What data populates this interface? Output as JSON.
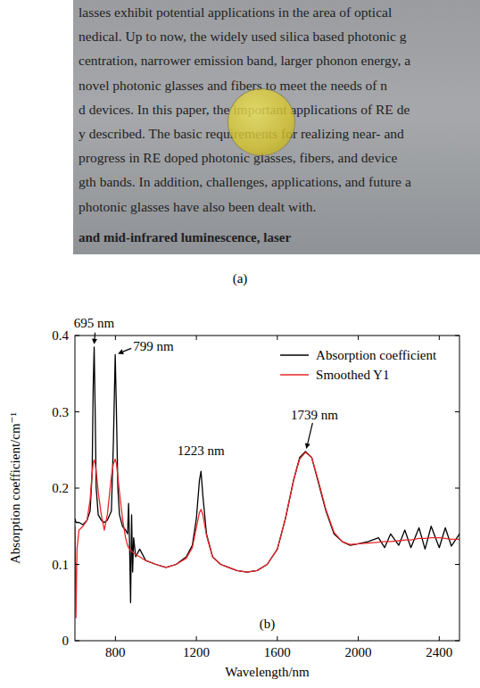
{
  "panel_a": {
    "caption": "(a)",
    "lines": [
      "lasses exhibit potential applications in the area of optical",
      "nedical. Up to now, the widely used silica based photonic g",
      "centration, narrower emission band, larger phonon energy, a",
      "novel photonic glasses and fibers to meet the needs of n",
      "d devices. In this paper, the important applications of RE de",
      "y described. The basic requirements for realizing near- and",
      "progress in RE doped photonic glasses, fibers, and device",
      "gth bands. In addition, challenges, applications, and future a",
      "photonic glasses have also been dealt with."
    ],
    "heading": "and mid-infrared luminescence, laser"
  },
  "chart_data": {
    "type": "line",
    "panel_label": "(b)",
    "x_label": "Wavelength/nm",
    "y_label": "Absorption coefficient/cm⁻¹",
    "xlim": [
      600,
      2500
    ],
    "ylim": [
      0,
      0.4
    ],
    "xticks": [
      800,
      1200,
      1600,
      2000,
      2400
    ],
    "yticks": [
      0,
      0.1,
      0.2,
      0.3,
      0.4
    ],
    "grid": false,
    "legend": "upper right",
    "x": [
      600,
      605,
      610,
      620,
      640,
      660,
      675,
      685,
      690,
      695,
      700,
      705,
      715,
      730,
      745,
      760,
      780,
      790,
      799,
      805,
      812,
      820,
      835,
      850,
      860,
      865,
      870,
      875,
      880,
      885,
      890,
      900,
      920,
      950,
      1000,
      1050,
      1100,
      1150,
      1180,
      1200,
      1215,
      1223,
      1232,
      1250,
      1280,
      1320,
      1400,
      1450,
      1500,
      1550,
      1600,
      1640,
      1680,
      1710,
      1739,
      1770,
      1800,
      1840,
      1880,
      1920,
      1960,
      2000,
      2050,
      2100,
      2130,
      2160,
      2200,
      2230,
      2260,
      2300,
      2330,
      2360,
      2400,
      2430,
      2460,
      2500
    ],
    "series": [
      {
        "name": "Absorption coefficient",
        "color": "#000000",
        "line_style": "solid",
        "values": [
          0.16,
          0.155,
          0.155,
          0.155,
          0.152,
          0.158,
          0.17,
          0.22,
          0.33,
          0.385,
          0.3,
          0.2,
          0.165,
          0.158,
          0.155,
          0.158,
          0.17,
          0.26,
          0.375,
          0.3,
          0.2,
          0.165,
          0.15,
          0.145,
          0.14,
          0.18,
          0.125,
          0.05,
          0.165,
          0.09,
          0.135,
          0.11,
          0.12,
          0.105,
          0.1,
          0.096,
          0.1,
          0.11,
          0.125,
          0.16,
          0.21,
          0.222,
          0.19,
          0.14,
          0.11,
          0.1,
          0.092,
          0.09,
          0.092,
          0.1,
          0.12,
          0.16,
          0.21,
          0.24,
          0.248,
          0.24,
          0.21,
          0.17,
          0.14,
          0.13,
          0.125,
          0.127,
          0.13,
          0.135,
          0.122,
          0.14,
          0.125,
          0.145,
          0.122,
          0.148,
          0.12,
          0.15,
          0.122,
          0.148,
          0.124,
          0.14
        ]
      },
      {
        "name": "Smoothed Y1",
        "color": "#e8262a",
        "line_style": "solid",
        "values": [
          0.15,
          0.03,
          0.12,
          0.145,
          0.15,
          0.158,
          0.185,
          0.22,
          0.232,
          0.237,
          0.232,
          0.222,
          0.195,
          0.165,
          0.145,
          0.165,
          0.215,
          0.232,
          0.238,
          0.232,
          0.215,
          0.195,
          0.16,
          0.135,
          0.125,
          0.122,
          0.12,
          0.118,
          0.118,
          0.116,
          0.115,
          0.113,
          0.11,
          0.105,
          0.1,
          0.096,
          0.1,
          0.108,
          0.122,
          0.148,
          0.168,
          0.172,
          0.165,
          0.138,
          0.11,
          0.1,
          0.092,
          0.09,
          0.092,
          0.1,
          0.12,
          0.16,
          0.21,
          0.238,
          0.247,
          0.24,
          0.212,
          0.172,
          0.142,
          0.13,
          0.126,
          0.127,
          0.128,
          0.129,
          0.13,
          0.13,
          0.131,
          0.132,
          0.132,
          0.134,
          0.134,
          0.135,
          0.135,
          0.134,
          0.133,
          0.133
        ]
      }
    ],
    "annotations": [
      {
        "text": "695 nm",
        "x": 695,
        "y": 0.385
      },
      {
        "text": "799 nm",
        "x": 799,
        "y": 0.375
      },
      {
        "text": "1223 nm",
        "x": 1223,
        "y": 0.222
      },
      {
        "text": "1739 nm",
        "x": 1739,
        "y": 0.248
      }
    ]
  }
}
